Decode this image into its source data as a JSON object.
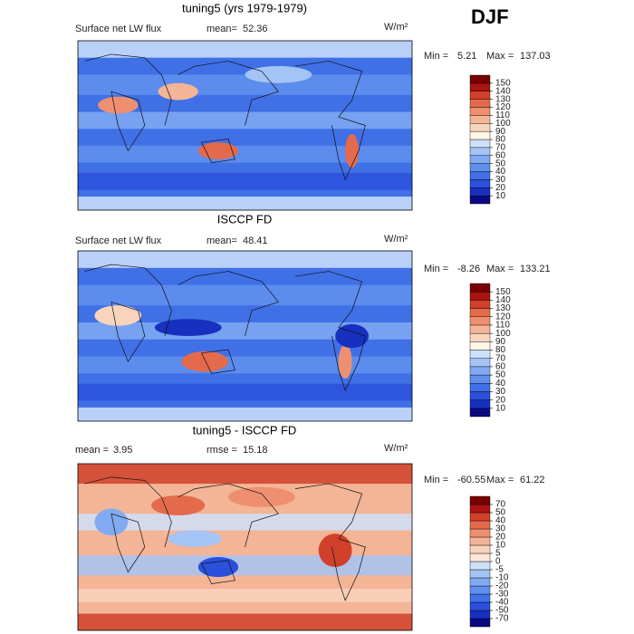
{
  "season": "DJF",
  "panels": [
    {
      "title": "tuning5 (yrs 1979-1979)",
      "variable": "Surface net LW flux",
      "stats": [
        {
          "label": "mean=",
          "value": 52.36
        }
      ],
      "units": "W/m²",
      "min_label": "Min =",
      "min": 5.21,
      "max_label": "Max =",
      "max": 137.03,
      "levels": [
        10,
        20,
        30,
        40,
        50,
        60,
        70,
        80,
        90,
        100,
        110,
        120,
        130,
        140,
        150
      ],
      "colors": [
        "#0a0a80",
        "#1830c0",
        "#2a50dc",
        "#4070e6",
        "#6090ee",
        "#80aaf2",
        "#a4c4f6",
        "#cfe0fa",
        "#fff6e6",
        "#f8d4bc",
        "#f4b496",
        "#ee9070",
        "#e46a4c",
        "#d0402a",
        "#a81410",
        "#780000"
      ]
    },
    {
      "title": "ISCCP FD",
      "variable": "Surface net LW flux",
      "stats": [
        {
          "label": "mean=",
          "value": 48.41
        }
      ],
      "units": "W/m²",
      "min_label": "Min =",
      "min": -8.26,
      "max_label": "Max =",
      "max": 133.21,
      "levels": [
        10,
        20,
        30,
        40,
        50,
        60,
        70,
        80,
        90,
        100,
        110,
        120,
        130,
        140,
        150
      ],
      "colors": [
        "#0a0a80",
        "#1830c0",
        "#2a50dc",
        "#4070e6",
        "#6090ee",
        "#80aaf2",
        "#a4c4f6",
        "#cfe0fa",
        "#fff6e6",
        "#f8d4bc",
        "#f4b496",
        "#ee9070",
        "#e46a4c",
        "#d0402a",
        "#a81410",
        "#780000"
      ]
    },
    {
      "title": "tuning5 - ISCCP FD",
      "variable": null,
      "stats": [
        {
          "label": "mean =",
          "value": 3.95
        },
        {
          "label": "rmse =",
          "value": 15.18
        }
      ],
      "units": "W/m²",
      "min_label": "Min =",
      "min": -60.55,
      "max_label": "Max =",
      "max": 61.22,
      "levels": [
        -70,
        -50,
        -40,
        -30,
        -20,
        -10,
        -5,
        0,
        5,
        10,
        20,
        30,
        40,
        50,
        70
      ],
      "colors": [
        "#0a0a80",
        "#1830c0",
        "#2a50dc",
        "#4070e6",
        "#6090ee",
        "#80aaf2",
        "#a4c4f6",
        "#cfe0fa",
        "#fbe6d8",
        "#f8d4bc",
        "#f4b496",
        "#ee9070",
        "#e46a4c",
        "#d0402a",
        "#a81410",
        "#780000"
      ]
    }
  ]
}
